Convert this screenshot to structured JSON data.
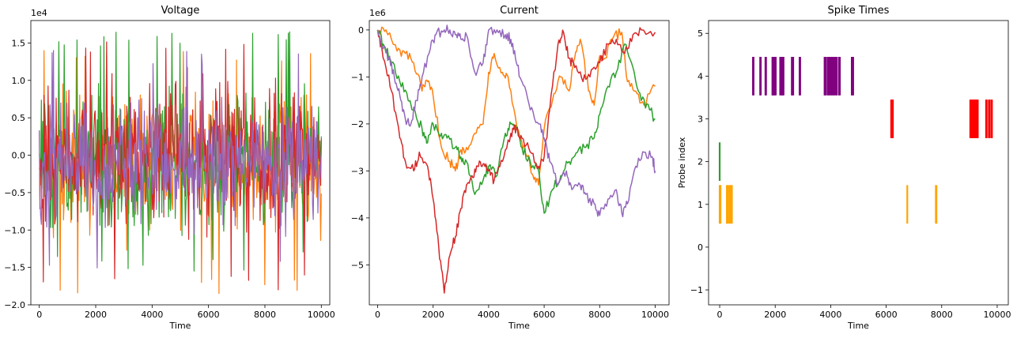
{
  "chart_data": [
    {
      "type": "line",
      "title": "Voltage",
      "xlabel": "Time",
      "ylabel": "",
      "offset_text": "1e4",
      "xlim": [
        -300,
        10300
      ],
      "ylim": [
        -2.0,
        1.8
      ],
      "xticks": [
        0,
        2000,
        4000,
        6000,
        8000,
        10000
      ],
      "xtick_labels": [
        "0",
        "2000",
        "4000",
        "6000",
        "8000",
        "10000"
      ],
      "yticks": [
        -2.0,
        -1.5,
        -1.0,
        -0.5,
        0.0,
        0.5,
        1.0,
        1.5
      ],
      "ytick_labels": [
        "−2.0",
        "−1.5",
        "−1.0",
        "−0.5",
        "0.0",
        "0.5",
        "1.0",
        "1.5"
      ],
      "grid": false,
      "series": [
        {
          "color": "#ff7f0e",
          "x_range": [
            0,
            10000
          ],
          "mean": -0.1,
          "amplitude": 0.9,
          "min": -1.85,
          "max": 1.45,
          "points": 420
        },
        {
          "color": "#2ca02c",
          "x_range": [
            0,
            10000
          ],
          "mean": -0.1,
          "amplitude": 0.9,
          "min": -1.55,
          "max": 1.65,
          "points": 420
        },
        {
          "color": "#d62728",
          "x_range": [
            0,
            10000
          ],
          "mean": 0.0,
          "amplitude": 0.95,
          "min": -1.8,
          "max": 1.55,
          "points": 420
        },
        {
          "color": "#9467bd",
          "x_range": [
            0,
            10000
          ],
          "mean": -0.1,
          "amplitude": 0.8,
          "min": -1.55,
          "max": 1.4,
          "points": 420
        }
      ]
    },
    {
      "type": "line",
      "title": "Current",
      "xlabel": "Time",
      "ylabel": "",
      "offset_text": "1e6",
      "xlim": [
        -300,
        10500
      ],
      "ylim": [
        -5.85,
        0.2
      ],
      "xticks": [
        0,
        2000,
        4000,
        6000,
        8000,
        10000
      ],
      "xtick_labels": [
        "0",
        "2000",
        "4000",
        "6000",
        "8000",
        "10000"
      ],
      "yticks": [
        0,
        -1,
        -2,
        -3,
        -4,
        -5
      ],
      "ytick_labels": [
        "0",
        "−1",
        "−2",
        "−3",
        "−4",
        "−5"
      ],
      "grid": false,
      "series": [
        {
          "color": "#ff7f0e",
          "x": [
            0,
            300,
            700,
            1000,
            1300,
            1600,
            1800,
            2000,
            2300,
            2600,
            2800,
            3000,
            3200,
            3500,
            3800,
            4000,
            4200,
            4500,
            4700,
            5000,
            5200,
            5400,
            5600,
            5800,
            6000,
            6300,
            6600,
            6900,
            7100,
            7300,
            7600,
            7800,
            8000,
            8200,
            8500,
            8800,
            9000,
            9300,
            9600,
            10000
          ],
          "y": [
            0,
            0,
            -0.45,
            -0.5,
            -0.7,
            -1.3,
            -1.1,
            -1.4,
            -2.5,
            -2.8,
            -3.0,
            -2.55,
            -2.5,
            -2.2,
            -2.0,
            -0.9,
            -0.5,
            -0.9,
            -1.0,
            -2.0,
            -2.4,
            -2.7,
            -3.1,
            -3.3,
            -2.1,
            -1.5,
            -1.0,
            -1.3,
            -0.6,
            -0.2,
            -1.3,
            -1.6,
            -0.55,
            -0.6,
            -0.15,
            -0.05,
            -1.1,
            -1.3,
            -1.6,
            -1.2
          ]
        },
        {
          "color": "#2ca02c",
          "x": [
            0,
            200,
            500,
            800,
            1100,
            1300,
            1600,
            1800,
            2000,
            2300,
            2500,
            2800,
            3000,
            3200,
            3500,
            3800,
            4000,
            4300,
            4600,
            4800,
            5000,
            5200,
            5500,
            5800,
            6000,
            6300,
            6600,
            6900,
            7200,
            7500,
            7800,
            8000,
            8300,
            8600,
            8900,
            9200,
            9500,
            9800,
            10000
          ],
          "y": [
            0,
            -0.3,
            -0.7,
            -1.1,
            -1.5,
            -1.7,
            -2.1,
            -2.4,
            -2.0,
            -2.2,
            -2.3,
            -2.5,
            -2.7,
            -2.8,
            -3.5,
            -3.2,
            -2.9,
            -3.1,
            -2.2,
            -2.0,
            -2.1,
            -2.5,
            -2.8,
            -3.0,
            -3.9,
            -3.4,
            -3.1,
            -2.8,
            -2.6,
            -2.5,
            -2.3,
            -1.8,
            -1.2,
            -0.9,
            -0.3,
            -0.8,
            -1.5,
            -1.7,
            -1.9
          ]
        },
        {
          "color": "#d62728",
          "x": [
            0,
            200,
            500,
            800,
            1000,
            1300,
            1500,
            1800,
            2000,
            2200,
            2400,
            2600,
            2800,
            3000,
            3200,
            3400,
            3600,
            3800,
            4000,
            4200,
            4500,
            4800,
            5000,
            5200,
            5500,
            5800,
            6000,
            6200,
            6500,
            6700,
            6900,
            7100,
            7400,
            7700,
            8000,
            8300,
            8600,
            8900,
            9200,
            9500,
            10000
          ],
          "y": [
            0,
            -0.6,
            -1.3,
            -2.3,
            -2.8,
            -3.0,
            -2.6,
            -2.9,
            -3.6,
            -4.6,
            -5.6,
            -4.8,
            -4.4,
            -3.8,
            -3.3,
            -3.1,
            -2.9,
            -2.85,
            -3.0,
            -3.2,
            -2.8,
            -2.2,
            -2.1,
            -2.3,
            -2.6,
            -2.9,
            -2.7,
            -1.7,
            -0.3,
            -0.05,
            -0.6,
            -0.8,
            -1.1,
            -0.85,
            -0.7,
            -0.3,
            -0.2,
            -0.5,
            -0.1,
            0,
            -0.05
          ]
        },
        {
          "color": "#9467bd",
          "x": [
            0,
            200,
            400,
            600,
            800,
            1000,
            1200,
            1400,
            1600,
            1900,
            2100,
            2400,
            2600,
            2800,
            3000,
            3200,
            3500,
            3800,
            4000,
            4300,
            4600,
            4800,
            5000,
            5200,
            5500,
            5800,
            6000,
            6200,
            6500,
            6800,
            7000,
            7300,
            7500,
            7800,
            8000,
            8300,
            8600,
            8800,
            9000,
            9300,
            9600,
            9900,
            10000
          ],
          "y": [
            0,
            -0.4,
            -0.6,
            -1.0,
            -1.4,
            -1.9,
            -2.0,
            -1.5,
            -1.0,
            -0.4,
            -0.1,
            0,
            0,
            -0.1,
            -0.2,
            -0.1,
            -0.9,
            -0.7,
            0,
            0,
            -0.1,
            -0.2,
            -0.7,
            -1.1,
            -1.7,
            -2.0,
            -2.3,
            -2.8,
            -3.3,
            -3.0,
            -3.4,
            -3.3,
            -3.5,
            -3.7,
            -3.95,
            -3.6,
            -3.4,
            -3.9,
            -3.7,
            -2.9,
            -2.6,
            -2.7,
            -3.0
          ]
        }
      ]
    },
    {
      "type": "scatter",
      "mark": "eventplot",
      "title": "Spike Times",
      "xlabel": "Time",
      "ylabel": "Probe index",
      "offset_text": "",
      "xlim": [
        -400,
        10400
      ],
      "ylim": [
        -1.35,
        5.3
      ],
      "xticks": [
        0,
        2000,
        4000,
        6000,
        8000,
        10000
      ],
      "xtick_labels": [
        "0",
        "2000",
        "4000",
        "6000",
        "8000",
        "10000"
      ],
      "yticks": [
        -1,
        0,
        1,
        2,
        3,
        4,
        5
      ],
      "ytick_labels": [
        "−1",
        "0",
        "1",
        "2",
        "3",
        "4",
        "5"
      ],
      "grid": false,
      "line_length": 0.9,
      "series": [
        {
          "probe": 1,
          "color": "#ffa500",
          "times": [
            0,
            20,
            30,
            260,
            280,
            300,
            360,
            380,
            420,
            440,
            6760,
            7790,
            7810
          ]
        },
        {
          "probe": 2,
          "color": "#2ca02c",
          "times": [
            0
          ]
        },
        {
          "probe": 3,
          "color": "#ff0000",
          "times": [
            6180,
            6200,
            6220,
            6240,
            9030,
            9060,
            9090,
            9120,
            9150,
            9180,
            9210,
            9240,
            9270,
            9300,
            9600,
            9620,
            9700,
            9720,
            9790,
            9810
          ]
        },
        {
          "probe": 4,
          "color": "#800080",
          "times": [
            1200,
            1220,
            1460,
            1480,
            1650,
            1670,
            1900,
            1920,
            1950,
            1980,
            2020,
            2180,
            2210,
            2240,
            2270,
            2300,
            2600,
            2620,
            2650,
            2880,
            2900,
            3780,
            3800,
            3830,
            3900,
            3930,
            3960,
            4020,
            4050,
            4100,
            4130,
            4190,
            4220,
            4300,
            4330,
            4760,
            4780,
            4810
          ]
        }
      ]
    }
  ]
}
